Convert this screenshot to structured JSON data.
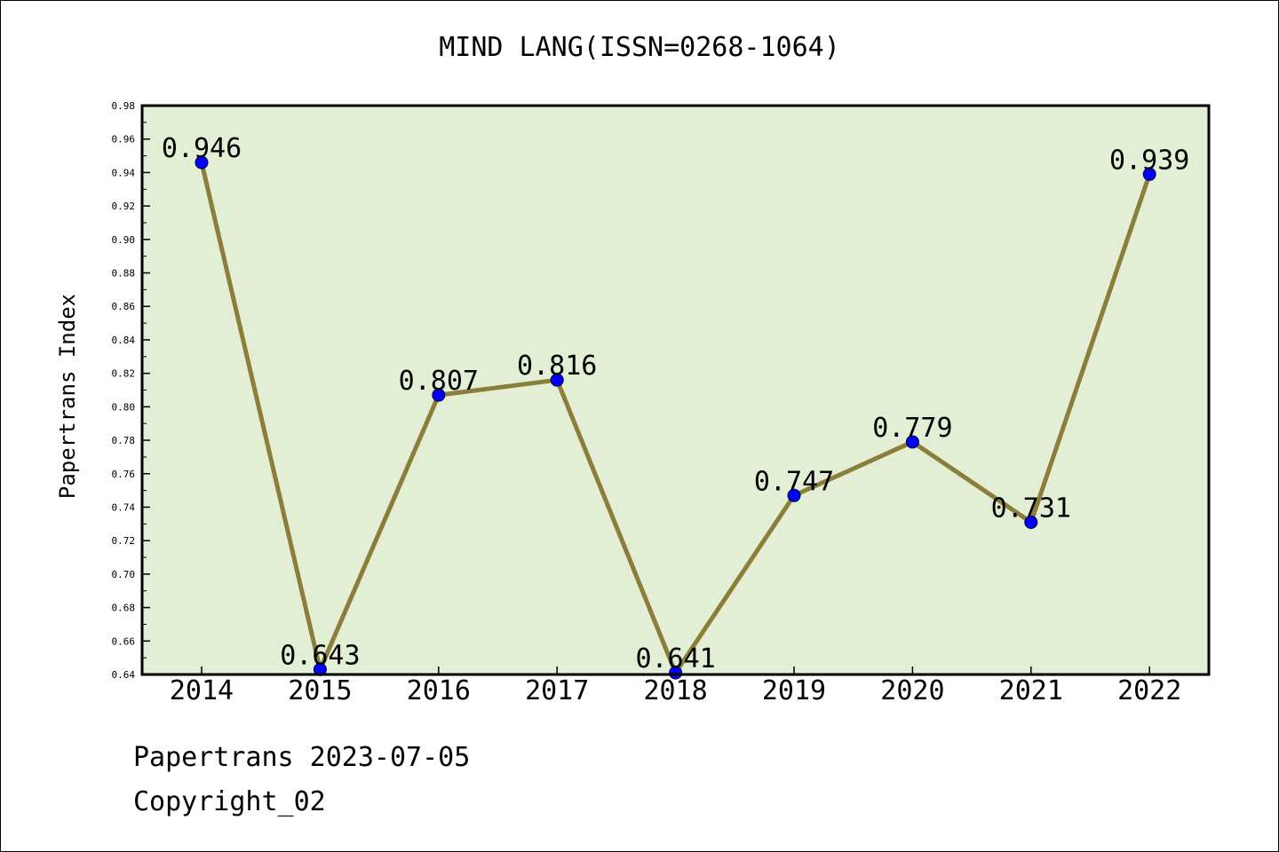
{
  "chart_data": {
    "type": "line",
    "title": "MIND LANG(ISSN=0268-1064)",
    "xlabel": "",
    "ylabel": "Papertrans Index",
    "categories": [
      "2014",
      "2015",
      "2016",
      "2017",
      "2018",
      "2019",
      "2020",
      "2021",
      "2022"
    ],
    "series": [
      {
        "values": [
          0.946,
          0.643,
          0.807,
          0.816,
          0.641,
          0.747,
          0.779,
          0.731,
          0.939
        ]
      }
    ],
    "data_labels": [
      "0.946",
      "0.643",
      "0.807",
      "0.816",
      "0.641",
      "0.747",
      "0.779",
      "0.731",
      "0.939"
    ],
    "y_ticks": [
      "0.64",
      "0.66",
      "0.68",
      "0.70",
      "0.72",
      "0.74",
      "0.76",
      "0.78",
      "0.80",
      "0.82",
      "0.84",
      "0.86",
      "0.88",
      "0.90",
      "0.92",
      "0.94",
      "0.96",
      "0.98"
    ],
    "ylim": [
      0.64,
      0.98
    ],
    "grid": false,
    "legend": "none",
    "colors": {
      "plot_background": "#e2efd5",
      "line": "#8b7d3a",
      "marker": "#0000ff"
    }
  },
  "footer": {
    "line1": "Papertrans 2023-07-05",
    "line2": "Copyright_02"
  }
}
